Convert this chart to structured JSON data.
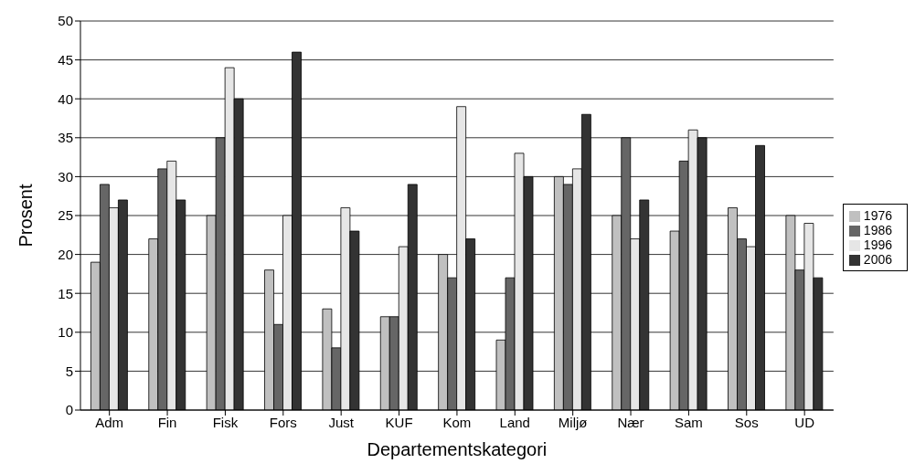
{
  "chart_data": {
    "type": "bar",
    "xlabel": "Departementskategori",
    "ylabel": "Prosent",
    "categories": [
      "Adm",
      "Fin",
      "Fisk",
      "Fors",
      "Just",
      "KUF",
      "Kom",
      "Land",
      "Miljø",
      "Nær",
      "Sam",
      "Sos",
      "UD"
    ],
    "series": [
      {
        "name": "1976",
        "color": "#c0c0c0",
        "values": [
          19,
          22,
          25,
          18,
          13,
          12,
          20,
          9,
          30,
          25,
          23,
          26,
          25
        ]
      },
      {
        "name": "1986",
        "color": "#666666",
        "values": [
          29,
          31,
          35,
          11,
          8,
          12,
          17,
          17,
          29,
          35,
          32,
          22,
          18
        ]
      },
      {
        "name": "1996",
        "color": "#e6e6e6",
        "values": [
          26,
          32,
          44,
          25,
          26,
          21,
          39,
          33,
          31,
          22,
          36,
          21,
          24
        ]
      },
      {
        "name": "2006",
        "color": "#333333",
        "values": [
          27,
          27,
          40,
          46,
          23,
          29,
          22,
          30,
          38,
          27,
          35,
          34,
          17
        ]
      }
    ],
    "ylim": [
      0,
      50
    ],
    "yticks": [
      0,
      5,
      10,
      15,
      20,
      25,
      30,
      35,
      40,
      45,
      50
    ],
    "grid": "y",
    "legend": "right"
  }
}
